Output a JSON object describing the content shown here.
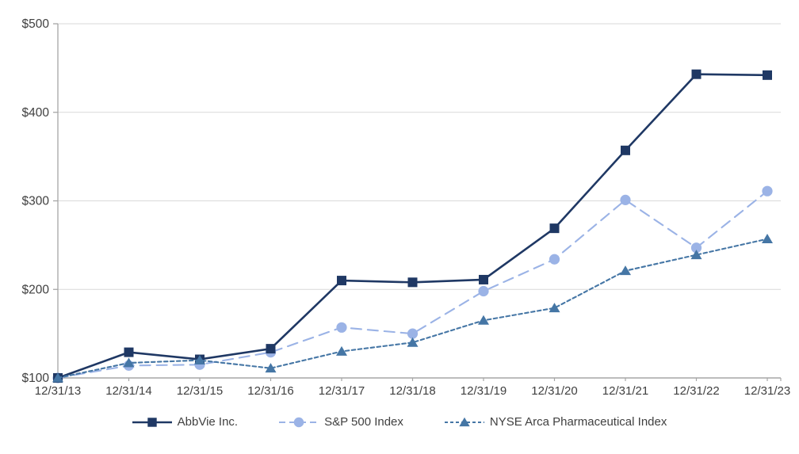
{
  "chart_data": {
    "type": "line",
    "title": "",
    "xlabel": "",
    "ylabel": "",
    "categories": [
      "12/31/13",
      "12/31/14",
      "12/31/15",
      "12/31/16",
      "12/31/17",
      "12/31/18",
      "12/31/19",
      "12/31/20",
      "12/31/21",
      "12/31/22",
      "12/31/23"
    ],
    "series": [
      {
        "name": "AbbVie Inc.",
        "marker": "square",
        "line_style": "solid",
        "color": "#1F3864",
        "values": [
          100,
          129,
          121,
          133,
          210,
          208,
          211,
          269,
          357,
          443,
          442
        ]
      },
      {
        "name": "S&P 500 Index",
        "marker": "circle",
        "line_style": "long-dash",
        "color": "#9BB3E6",
        "values": [
          100,
          114,
          115,
          129,
          157,
          150,
          198,
          234,
          301,
          247,
          311
        ]
      },
      {
        "name": "NYSE Arca Pharmaceutical Index",
        "marker": "triangle",
        "line_style": "short-dash",
        "color": "#4576A5",
        "values": [
          100,
          117,
          120,
          111,
          130,
          140,
          165,
          179,
          221,
          239,
          257
        ]
      }
    ],
    "y_axis": {
      "min": 100,
      "max": 500,
      "step": 100,
      "tick_labels": [
        "$100",
        "$200",
        "$300",
        "$400",
        "$500"
      ]
    },
    "x_axis": {
      "tick_labels_visible": true
    },
    "legend_position": "bottom",
    "grid": true,
    "colors": {
      "background": "#FFFFFF",
      "gridline": "#D9D9D9",
      "axis": "#A6A6A6",
      "label": "#404040"
    }
  }
}
